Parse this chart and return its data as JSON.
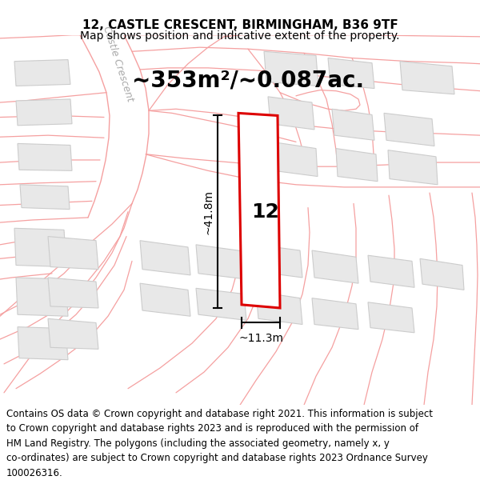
{
  "title_line1": "12, CASTLE CRESCENT, BIRMINGHAM, B36 9TF",
  "title_line2": "Map shows position and indicative extent of the property.",
  "area_text": "~353m²/~0.087ac.",
  "label_12": "12",
  "dim_vertical": "~41.8m",
  "dim_horizontal": "~11.3m",
  "footer_text": "Contains OS data © Crown copyright and database right 2021. This information is subject\nto Crown copyright and database rights 2023 and is reproduced with the permission of\nHM Land Registry. The polygons (including the associated geometry, namely x, y\nco-ordinates) are subject to Crown copyright and database rights 2023 Ordnance Survey\n100026316.",
  "bg_color": "#ffffff",
  "map_bg": "#ffffff",
  "plot_outline_color": "#dd0000",
  "neighbor_fill": "#e8e8e8",
  "neighbor_stroke": "#cccccc",
  "road_line_color": "#f5a0a0",
  "road_fill_color": "#f0f0f0",
  "dim_line_color": "#000000",
  "street_text_color": "#b0b0b0",
  "title_fontsize": 11,
  "subtitle_fontsize": 10,
  "area_fontsize": 20,
  "label_fontsize": 18,
  "dim_fontsize": 10,
  "street_fontsize": 9,
  "footer_fontsize": 8.5
}
